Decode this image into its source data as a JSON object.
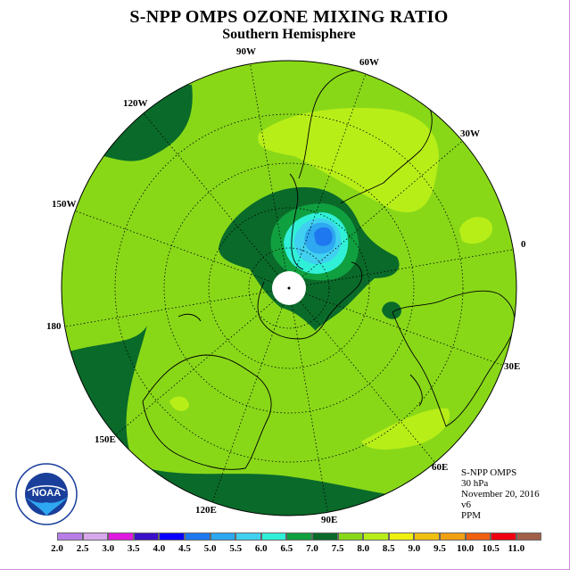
{
  "title": "S-NPP OMPS OZONE MIXING RATIO",
  "subtitle": "Southern Hemisphere",
  "longitude_labels": {
    "l90w": "90W",
    "l60w": "60W",
    "l30w": "30W",
    "l0": "0",
    "l120w": "120W",
    "l150w": "150W",
    "l180": "180",
    "l30e": "30E",
    "l60e": "60E",
    "l90e": "90E",
    "l120e": "120E",
    "l150e": "150E"
  },
  "info": {
    "instrument": "S-NPP OMPS",
    "level": "30 hPa",
    "date": "November 20, 2016",
    "version": "v6",
    "units": "PPM"
  },
  "logo": {
    "text": "NOAA",
    "icon": "noaa-logo-icon"
  },
  "colorbar": {
    "ticks": [
      "2.0",
      "2.5",
      "3.0",
      "3.5",
      "4.0",
      "4.5",
      "5.0",
      "5.5",
      "6.0",
      "6.5",
      "7.0",
      "7.5",
      "8.0",
      "8.5",
      "9.0",
      "9.5",
      "10.0",
      "10.5",
      "11.0"
    ],
    "colors": [
      "#b87ee8",
      "#d8a8ec",
      "#e018e0",
      "#3a10c8",
      "#0a00ff",
      "#1e78f0",
      "#2ea8f0",
      "#40d0f0",
      "#30f0d8",
      "#10a040",
      "#0a6a2a",
      "#88d818",
      "#b8ee18",
      "#f0f010",
      "#f0c010",
      "#f0a010",
      "#f06010",
      "#f00010",
      "#a06048"
    ]
  },
  "map": {
    "projection": "south polar stereographic",
    "background_level_color": "#88d818",
    "regions": [
      "ozone-high-8.0",
      "ozone-low-6.5",
      "ozone-low-5.5",
      "ozone-low-5.0",
      "ozone-low-4.5",
      "polar-missing-data"
    ]
  }
}
